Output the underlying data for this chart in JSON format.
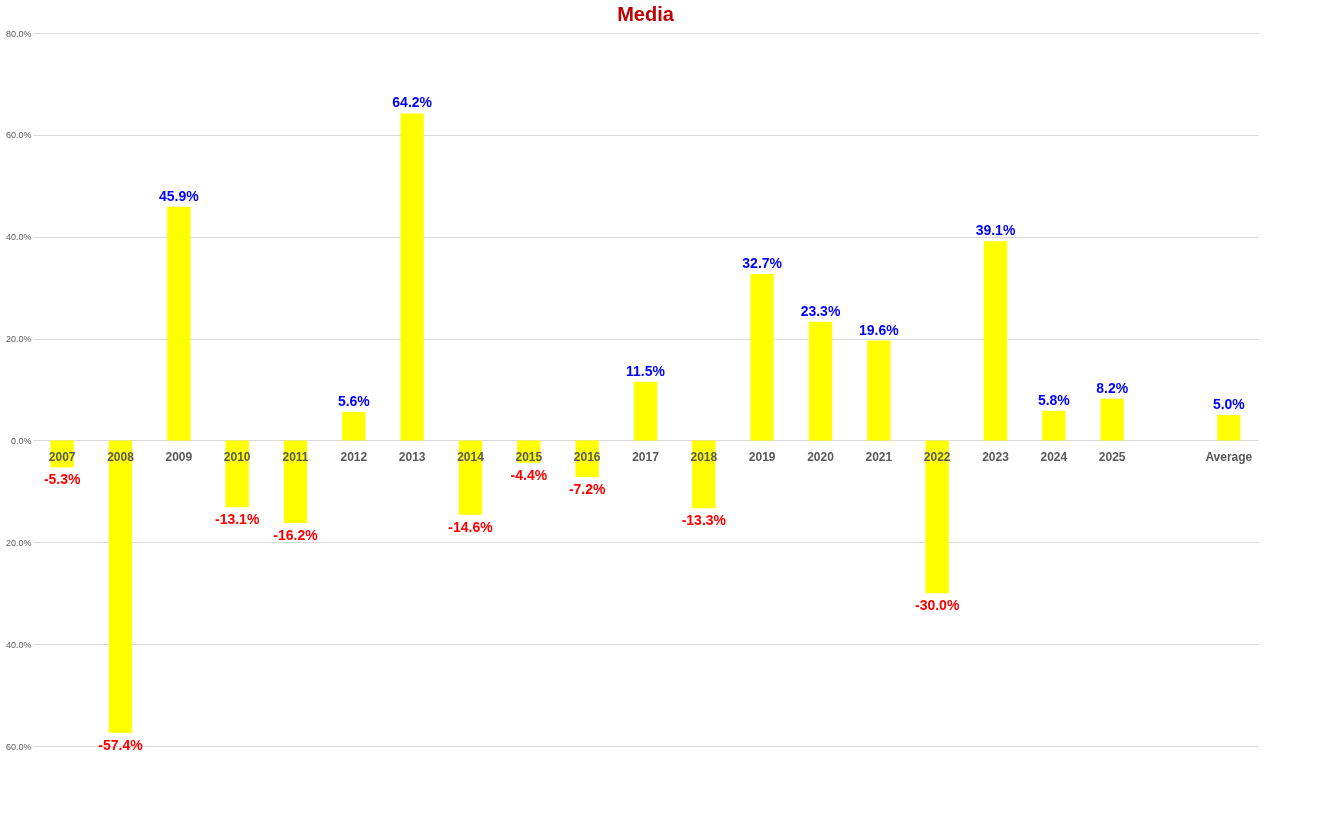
{
  "chart_data": {
    "type": "bar",
    "title": "Media",
    "categories": [
      "2007",
      "2008",
      "2009",
      "2010",
      "2011",
      "2012",
      "2013",
      "2014",
      "2015",
      "2016",
      "2017",
      "2018",
      "2019",
      "2020",
      "2021",
      "2022",
      "2023",
      "2024",
      "2025",
      null,
      "Average"
    ],
    "values": [
      -5.3,
      -57.4,
      45.9,
      -13.1,
      -16.2,
      5.6,
      64.2,
      -14.6,
      -4.4,
      -7.2,
      11.5,
      -13.3,
      32.7,
      23.3,
      19.6,
      -30.0,
      39.1,
      5.8,
      8.2,
      null,
      5.0
    ],
    "value_labels": [
      "-5.3%",
      "-57.4%",
      "45.9%",
      "-13.1%",
      "-16.2%",
      "5.6%",
      "64.2%",
      "-14.6%",
      "-4.4%",
      "-7.2%",
      "11.5%",
      "-13.3%",
      "32.7%",
      "23.3%",
      "19.6%",
      "-30.0%",
      "39.1%",
      "5.8%",
      "8.2%",
      null,
      "5.0%"
    ],
    "color": "#ffff00",
    "ylim": [
      -60,
      80
    ],
    "yticks": [
      {
        "value": -60,
        "label": "60.0%"
      },
      {
        "value": -40,
        "label": "40.0%"
      },
      {
        "value": -20,
        "label": "20.0%"
      },
      {
        "value": 0,
        "label": "0.0%"
      },
      {
        "value": 20,
        "label": "20.0%"
      },
      {
        "value": 40,
        "label": "40.0%"
      },
      {
        "value": 60,
        "label": "60.0%"
      },
      {
        "value": 80,
        "label": "80.0%"
      }
    ],
    "grid": "y"
  }
}
